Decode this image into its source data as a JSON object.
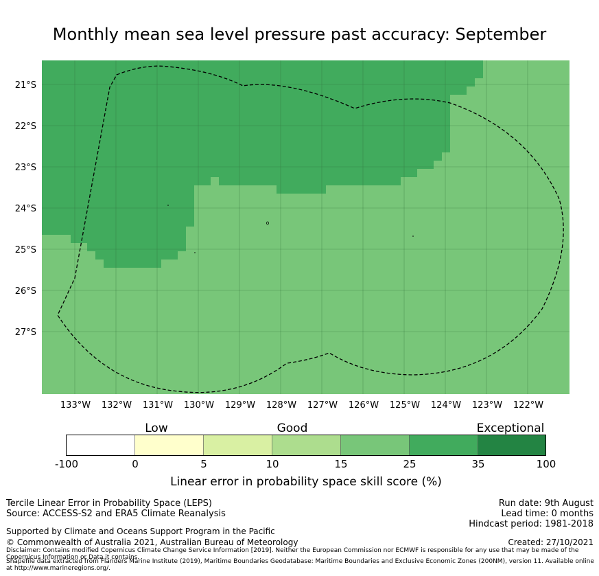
{
  "title": "Monthly mean sea level pressure past accuracy: September",
  "map": {
    "lat_labels": [
      "21°S",
      "22°S",
      "23°S",
      "24°S",
      "25°S",
      "26°S",
      "27°S"
    ],
    "lon_labels": [
      "133°W",
      "132°W",
      "131°W",
      "130°W",
      "129°W",
      "128°W",
      "127°W",
      "126°W",
      "125°W",
      "124°W",
      "123°W",
      "122°W"
    ],
    "colors": {
      "score_15_25": "#78c679",
      "score_25_35": "#41ab5d"
    }
  },
  "colorbar": {
    "category_labels": {
      "low": "Low",
      "good": "Good",
      "exceptional": "Exceptional"
    },
    "ticks": [
      "-100",
      "0",
      "5",
      "10",
      "15",
      "25",
      "35",
      "100"
    ],
    "colors": [
      "#ffffff",
      "#ffffcc",
      "#d9f0a3",
      "#addd8e",
      "#78c679",
      "#41ab5d",
      "#238443"
    ],
    "title": "Linear error in probability space skill score (%)"
  },
  "footer": {
    "left": [
      "Tercile Linear Error in Probability Space (LEPS)",
      "Source: ACCESS-S2 and ERA5 Climate Reanalysis"
    ],
    "support": "Supported by Climate and Oceans Support Program in the Pacific",
    "copyright": "© Commonwealth of Australia 2021, Australian Bureau of Meteorology",
    "disclaimer": "Disclaimer: Contains modified Copernicus Climate Change Service Information [2019]. Neither the European Commission nor ECMWF is responsible for any use that may be made of the Copernicus Information or Data it contains.",
    "shapefile": "Shapefile data extracted from Flanders Marine Institute (2019), Maritime Boundaries Geodatabase: Maritime Boundaries and Exclusive Economic Zones (200NM), version 11. Available online at http://www.marineregions.org/.",
    "run_date": "Run date: 9th August",
    "lead_time": "Lead time: 0 months",
    "hindcast": "Hindcast period: 1981-2018",
    "created": "Created: 27/10/2021"
  }
}
